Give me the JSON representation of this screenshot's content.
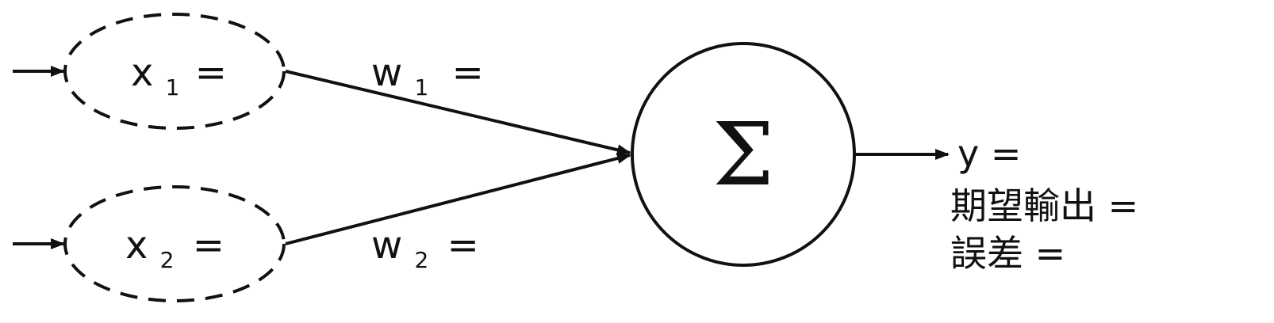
{
  "inputs": [
    {
      "var": "x",
      "sub": "1",
      "eq": "="
    },
    {
      "var": "x",
      "sub": "2",
      "eq": "="
    }
  ],
  "weights": [
    {
      "var": "w",
      "sub": "1",
      "eq": "="
    },
    {
      "var": "w",
      "sub": "2",
      "eq": "="
    }
  ],
  "neuron": {
    "symbol": "Σ"
  },
  "outputs": {
    "y": "y =",
    "expected": "期望輸出 =",
    "error": "誤差 ="
  },
  "colors": {
    "stroke": "#111111",
    "background": "#ffffff"
  }
}
